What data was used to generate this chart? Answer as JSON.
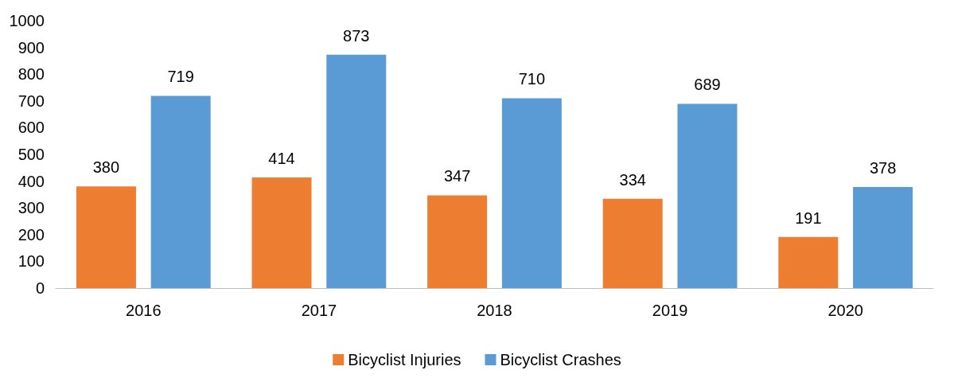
{
  "chart_data": {
    "type": "bar",
    "categories": [
      "2016",
      "2017",
      "2018",
      "2019",
      "2020"
    ],
    "series": [
      {
        "name": "Bicyclist Injuries",
        "color": "#ed7d31",
        "values": [
          380,
          414,
          347,
          334,
          191
        ]
      },
      {
        "name": "Bicyclist Crashes",
        "color": "#5b9bd5",
        "values": [
          719,
          873,
          710,
          689,
          378
        ]
      }
    ],
    "ylim": [
      0,
      1000
    ],
    "yticks": [
      0,
      100,
      200,
      300,
      400,
      500,
      600,
      700,
      800,
      900,
      1000
    ],
    "grid": false,
    "legend": "bottom",
    "data_labels": true
  }
}
